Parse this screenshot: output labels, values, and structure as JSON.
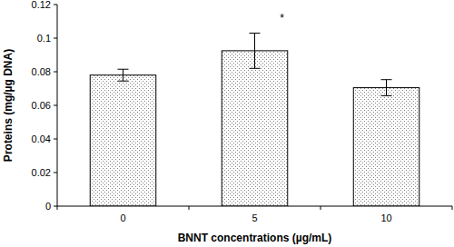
{
  "chart_data": {
    "type": "bar",
    "categories": [
      "0",
      "5",
      "10"
    ],
    "values": [
      0.078,
      0.0925,
      0.0705
    ],
    "errors": [
      0.0035,
      0.0105,
      0.0048
    ],
    "color": "#808080",
    "x_label": "BNNT concentrations (µg/mL)",
    "y_label": "Proteins (mg/µg DNA)",
    "ylim": [
      0,
      0.12
    ],
    "yticks": [
      0,
      0.02,
      0.04,
      0.06,
      0.08,
      0.1,
      0.12
    ],
    "annotations": [
      {
        "text": "*",
        "category": "5"
      }
    ],
    "grid": false
  }
}
